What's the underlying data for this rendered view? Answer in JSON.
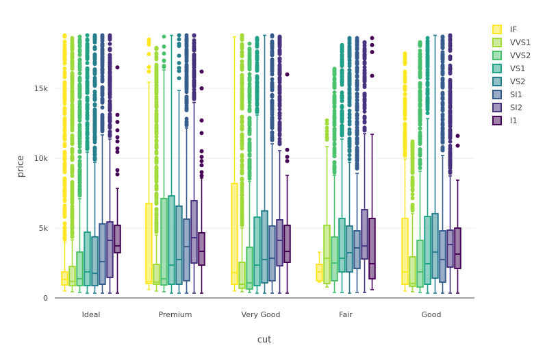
{
  "chart_data": {
    "type": "box",
    "title": "",
    "xlabel": "cut",
    "ylabel": "price",
    "ylim": [
      0,
      19000
    ],
    "yticks": [
      0,
      5000,
      10000,
      15000
    ],
    "ytick_labels": [
      "0",
      "5k",
      "10k",
      "15k"
    ],
    "grid": true,
    "legend_position": "right",
    "categories": [
      "Ideal",
      "Premium",
      "Very Good",
      "Fair",
      "Good"
    ],
    "series": [
      {
        "name": "IF",
        "color": "#fde725",
        "boxes": [
          {
            "lower": 490,
            "q1": 930,
            "median": 1320,
            "q3": 1860,
            "upper": 4000,
            "outlier_max": 18800
          },
          {
            "lower": 590,
            "q1": 1030,
            "median": 1170,
            "q3": 6760,
            "upper": 15440,
            "outlier_max": 18500
          },
          {
            "lower": 490,
            "q1": 980,
            "median": 1810,
            "q3": 8190,
            "upper": 18680,
            "outlier_max": null
          },
          {
            "lower": 1130,
            "q1": 1230,
            "median": 1860,
            "q3": 2400,
            "upper": 3280,
            "outlier_max": null
          },
          {
            "lower": 490,
            "q1": 980,
            "median": 1860,
            "q3": 5690,
            "upper": 9950,
            "outlier_max": 17500
          }
        ]
      },
      {
        "name": "VVS1",
        "color": "#a0da39",
        "boxes": [
          {
            "lower": 440,
            "q1": 880,
            "median": 1180,
            "q3": 2250,
            "upper": 4150,
            "outlier_max": 18600
          },
          {
            "lower": 490,
            "q1": 980,
            "median": 1130,
            "q3": 2400,
            "upper": 4500,
            "outlier_max": 17900
          },
          {
            "lower": 440,
            "q1": 690,
            "median": 980,
            "q3": 2550,
            "upper": 5000,
            "outlier_max": 18800
          },
          {
            "lower": 780,
            "q1": 1030,
            "median": 2840,
            "q3": 5200,
            "upper": 10830,
            "outlier_max": 12700
          },
          {
            "lower": 440,
            "q1": 830,
            "median": 1030,
            "q3": 2940,
            "upper": 6030,
            "outlier_max": 11200
          }
        ]
      },
      {
        "name": "VVS2",
        "color": "#4ac16d",
        "boxes": [
          {
            "lower": 390,
            "q1": 880,
            "median": 1370,
            "q3": 3280,
            "upper": 7100,
            "outlier_max": 18700
          },
          {
            "lower": 440,
            "q1": 930,
            "median": 1370,
            "q3": 7110,
            "upper": 16320,
            "outlier_max": 18700
          },
          {
            "lower": 390,
            "q1": 640,
            "median": 1080,
            "q3": 3630,
            "upper": 8330,
            "outlier_max": 18200
          },
          {
            "lower": 390,
            "q1": 1230,
            "median": 2500,
            "q3": 4360,
            "upper": 8770,
            "outlier_max": 16400
          },
          {
            "lower": 390,
            "q1": 780,
            "median": 1860,
            "q3": 4120,
            "upper": 9070,
            "outlier_max": 18300
          }
        ]
      },
      {
        "name": "VS1",
        "color": "#1fa187",
        "boxes": [
          {
            "lower": 340,
            "q1": 880,
            "median": 1860,
            "q3": 4710,
            "upper": 10440,
            "outlier_max": 18800
          },
          {
            "lower": 340,
            "q1": 980,
            "median": 2350,
            "q3": 7300,
            "upper": 18800,
            "outlier_max": 18800
          },
          {
            "lower": 340,
            "q1": 880,
            "median": 2350,
            "q3": 5780,
            "upper": 13090,
            "outlier_max": 18600
          },
          {
            "lower": 390,
            "q1": 1860,
            "median": 2840,
            "q3": 5690,
            "upper": 11370,
            "outlier_max": 18100
          },
          {
            "lower": 340,
            "q1": 980,
            "median": 2450,
            "q3": 5830,
            "upper": 12840,
            "outlier_max": 18600
          }
        ]
      },
      {
        "name": "VS2",
        "color": "#277f8e",
        "boxes": [
          {
            "lower": 340,
            "q1": 880,
            "median": 1760,
            "q3": 4370,
            "upper": 9700,
            "outlier_max": 18800
          },
          {
            "lower": 340,
            "q1": 980,
            "median": 2750,
            "q3": 6570,
            "upper": 14850,
            "outlier_max": 18800
          },
          {
            "lower": 340,
            "q1": 1080,
            "median": 2750,
            "q3": 6230,
            "upper": 18800,
            "outlier_max": 18800
          },
          {
            "lower": 340,
            "q1": 1860,
            "median": 3240,
            "q3": 5150,
            "upper": 9700,
            "outlier_max": 18600
          },
          {
            "lower": 340,
            "q1": 1420,
            "median": 3280,
            "q3": 6030,
            "upper": 18800,
            "outlier_max": 18800
          }
        ]
      },
      {
        "name": "SI1",
        "color": "#365c8d",
        "boxes": [
          {
            "lower": 340,
            "q1": 980,
            "median": 2600,
            "q3": 5300,
            "upper": 11670,
            "outlier_max": 18800
          },
          {
            "lower": 340,
            "q1": 1230,
            "median": 3670,
            "q3": 5640,
            "upper": 12160,
            "outlier_max": 18800
          },
          {
            "lower": 340,
            "q1": 1230,
            "median": 2840,
            "q3": 5150,
            "upper": 11030,
            "outlier_max": 18800
          },
          {
            "lower": 390,
            "q1": 2110,
            "median": 3580,
            "q3": 4800,
            "upper": 8920,
            "outlier_max": 18600
          },
          {
            "lower": 340,
            "q1": 1130,
            "median": 2750,
            "q3": 4800,
            "upper": 10200,
            "outlier_max": 18700
          }
        ]
      },
      {
        "name": "SI2",
        "color": "#46327e",
        "boxes": [
          {
            "lower": 340,
            "q1": 1470,
            "median": 4120,
            "q3": 5440,
            "upper": 11370,
            "outlier_max": 18800
          },
          {
            "lower": 340,
            "q1": 2500,
            "median": 4310,
            "q3": 6960,
            "upper": 14000,
            "outlier_max": 18800
          },
          {
            "lower": 340,
            "q1": 2300,
            "median": 4120,
            "q3": 5590,
            "upper": 10540,
            "outlier_max": 18700
          },
          {
            "lower": 390,
            "q1": 2790,
            "median": 3720,
            "q3": 6320,
            "upper": 11760,
            "outlier_max": 18300
          },
          {
            "lower": 340,
            "q1": 2210,
            "median": 3820,
            "q3": 4850,
            "upper": 8730,
            "outlier_max": 18800
          }
        ]
      },
      {
        "name": "I1",
        "color": "#440154",
        "boxes": [
          {
            "lower": 340,
            "q1": 3240,
            "median": 3730,
            "q3": 5200,
            "upper": 7840,
            "outliers": [
              8850,
              9150,
              10450,
              10700,
              11200,
              11500,
              12000,
              12600,
              13100,
              16500
            ]
          },
          {
            "lower": 340,
            "q1": 2350,
            "median": 3330,
            "q3": 4660,
            "upper": 8580,
            "outliers": [
              8750,
              9000,
              9500,
              9800,
              10100,
              10500,
              11800,
              12700,
              15000,
              16200
            ]
          },
          {
            "lower": 340,
            "q1": 2550,
            "median": 3330,
            "q3": 5200,
            "upper": 8770,
            "outliers": [
              9800,
              10100,
              10600,
              16000
            ]
          },
          {
            "lower": 590,
            "q1": 1370,
            "median": 2450,
            "q3": 5690,
            "upper": 11710,
            "outliers": [
              15900,
              17600,
              18100,
              18600
            ]
          },
          {
            "lower": 340,
            "q1": 2110,
            "median": 3140,
            "q3": 5000,
            "upper": 8430,
            "outliers": [
              10900,
              11600
            ]
          }
        ]
      }
    ]
  }
}
